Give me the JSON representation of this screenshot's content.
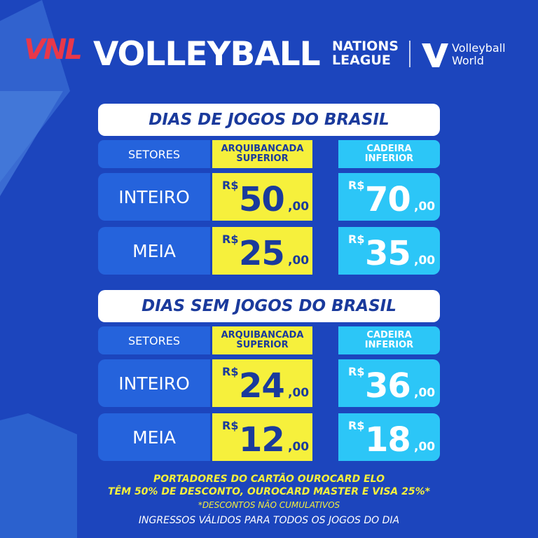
{
  "header": {
    "logo": "VNL",
    "brand": "VOLLEYBALL",
    "sub": [
      "NATIONS",
      "LEAGUE"
    ],
    "partner": [
      "Volleyball",
      "World"
    ]
  },
  "sections": [
    {
      "title": "DIAS DE JOGOS DO BRASIL",
      "columns": [
        "SETORES",
        [
          "ARQUIBANCADA",
          "SUPERIOR"
        ],
        [
          "CADEIRA",
          "INFERIOR"
        ]
      ],
      "rows": [
        {
          "label": "INTEIRO",
          "prices": [
            {
              "currency": "R$",
              "whole": "50",
              "cents": ",00"
            },
            {
              "currency": "R$",
              "whole": "70",
              "cents": ",00"
            }
          ]
        },
        {
          "label": "MEIA",
          "prices": [
            {
              "currency": "R$",
              "whole": "25",
              "cents": ",00"
            },
            {
              "currency": "R$",
              "whole": "35",
              "cents": ",00"
            }
          ]
        }
      ]
    },
    {
      "title": "DIAS SEM JOGOS DO BRASIL",
      "columns": [
        "SETORES",
        [
          "ARQUIBANCADA",
          "SUPERIOR"
        ],
        [
          "CADEIRA",
          "INFERIOR"
        ]
      ],
      "rows": [
        {
          "label": "INTEIRO",
          "prices": [
            {
              "currency": "R$",
              "whole": "24",
              "cents": ",00"
            },
            {
              "currency": "R$",
              "whole": "36",
              "cents": ",00"
            }
          ]
        },
        {
          "label": "MEIA",
          "prices": [
            {
              "currency": "R$",
              "whole": "12",
              "cents": ",00"
            },
            {
              "currency": "R$",
              "whole": "18",
              "cents": ",00"
            }
          ]
        }
      ]
    }
  ],
  "footer": {
    "promo": [
      "PORTADORES DO CARTÃO OUROCARD ELO",
      "TÊM 50% DE DESCONTO, OUROCARD MASTER E VISA 25%*"
    ],
    "note": "*DESCONTOS NÃO CUMULATIVOS",
    "info": "INGRESSOS VÁLIDOS PARA TODOS OS JOGOS DO DIA"
  }
}
